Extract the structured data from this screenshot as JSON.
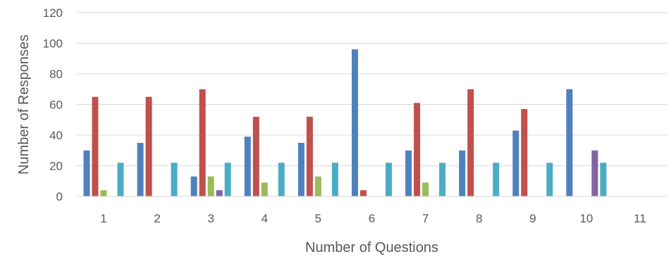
{
  "chart_data": {
    "type": "bar",
    "title": "",
    "xlabel": "Number of Questions",
    "ylabel": "Number of Responses",
    "categories": [
      "1",
      "2",
      "3",
      "4",
      "5",
      "6",
      "7",
      "8",
      "9",
      "10",
      "11"
    ],
    "ylim": [
      0,
      120
    ],
    "yticks": [
      0,
      20,
      40,
      60,
      80,
      100,
      120
    ],
    "grid": true,
    "legend": "none",
    "series": [
      {
        "color": "#4F81BD",
        "values": [
          30,
          35,
          13,
          39,
          35,
          96,
          30,
          30,
          43,
          70,
          0
        ]
      },
      {
        "color": "#C0504D",
        "values": [
          65,
          65,
          70,
          52,
          52,
          4,
          61,
          70,
          57,
          0,
          0
        ]
      },
      {
        "color": "#9BBB59",
        "values": [
          4,
          0,
          13,
          9,
          13,
          0,
          9,
          0,
          0,
          0,
          0
        ]
      },
      {
        "color": "#8064A2",
        "values": [
          0,
          0,
          4,
          0,
          0,
          0,
          0,
          0,
          0,
          30,
          0
        ]
      },
      {
        "color": "#4BACC6",
        "values": [
          22,
          22,
          22,
          22,
          22,
          22,
          22,
          22,
          22,
          22,
          0
        ]
      }
    ]
  }
}
